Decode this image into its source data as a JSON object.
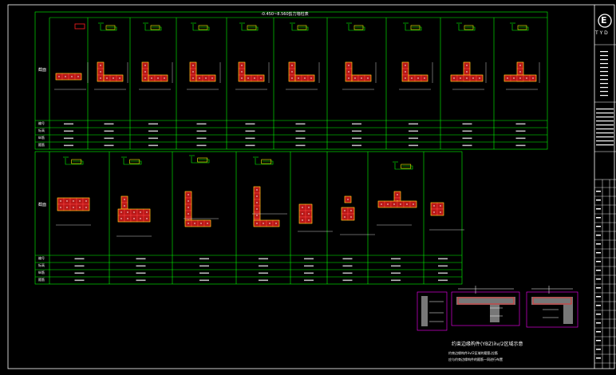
{
  "drawing": {
    "table_title": "-0.450~8.560剪力墙柱表",
    "row_headers": [
      "截面",
      "编号",
      "标高",
      "纵筋",
      "箍筋"
    ],
    "row_headers_short": [
      "截面",
      "编号",
      "标高",
      "纵筋",
      "箍筋"
    ],
    "section_title": "约束边缘构件(YBZ)λv/2区域示意",
    "note_lines": [
      "约束边缘构件λv/2区域的箍筋,拉筋",
      "应与约束边缘构件的箍筋一同进行布置"
    ]
  },
  "colors": {
    "background": "#000000",
    "grid": "#ffffff",
    "table_lines": "#00ff00",
    "rebar_fill": "#ff2020",
    "dim_lines": "#ffffff",
    "hatch": "#ff00ff",
    "yellow": "#ffff00"
  },
  "title_block": {
    "logo": "E",
    "company_short": "T Y D"
  }
}
